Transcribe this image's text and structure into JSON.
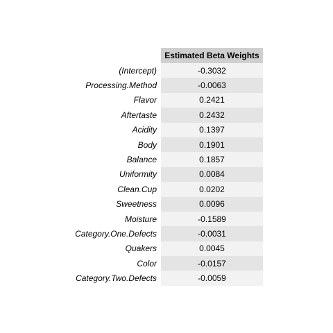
{
  "table": {
    "header": "Estimated Beta Weights",
    "rows": [
      {
        "label": "(Intercept)",
        "value": "-0.3032"
      },
      {
        "label": "Processing.Method",
        "value": "-0.0063"
      },
      {
        "label": "Flavor",
        "value": "0.2421"
      },
      {
        "label": "Aftertaste",
        "value": "0.2432"
      },
      {
        "label": "Acidity",
        "value": "0.1397"
      },
      {
        "label": "Body",
        "value": "0.1901"
      },
      {
        "label": "Balance",
        "value": "0.1857"
      },
      {
        "label": "Uniformity",
        "value": "0.0084"
      },
      {
        "label": "Clean.Cup",
        "value": "0.0202"
      },
      {
        "label": "Sweetness",
        "value": "0.0096"
      },
      {
        "label": "Moisture",
        "value": "-0.1589"
      },
      {
        "label": "Category.One.Defects",
        "value": "-0.0031"
      },
      {
        "label": "Quakers",
        "value": "0.0045"
      },
      {
        "label": "Color",
        "value": "-0.0157"
      },
      {
        "label": "Category.Two.Defects",
        "value": "-0.0059"
      }
    ]
  },
  "colors": {
    "header_bg": "#cfcfcf",
    "row_odd_bg": "#f2f2f2",
    "row_even_bg": "#e4e4e4"
  }
}
